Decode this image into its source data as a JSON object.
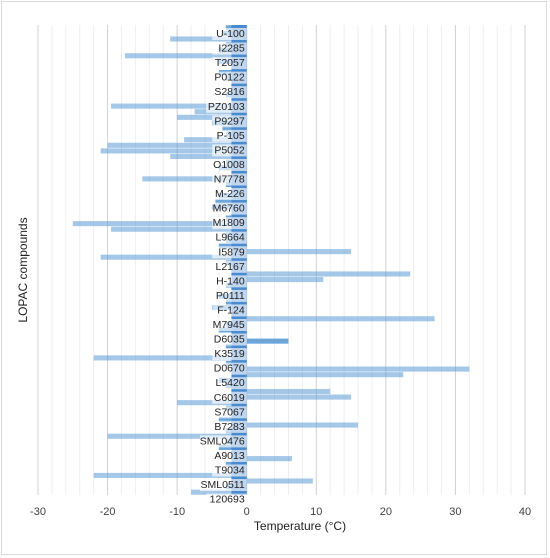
{
  "chart_data": {
    "type": "bar",
    "orientation": "horizontal",
    "xlabel": "Temperature (°C)",
    "ylabel": "LOPAC compounds",
    "xlim": [
      -30,
      40
    ],
    "xticks": [
      -30,
      -20,
      -10,
      0,
      10,
      20,
      30,
      40
    ],
    "grid": true,
    "labeled_categories": [
      "U-100",
      "I2285",
      "T2057",
      "P0122",
      "S2816",
      "PZ0103",
      "P9297",
      "P-105",
      "P5052",
      "O1008",
      "N7778",
      "M-226",
      "M6760",
      "M1809",
      "L9664",
      "I5879",
      "L2167",
      "H-140",
      "P0111",
      "F-124",
      "M7945",
      "D6035",
      "K3519",
      "D0670",
      "L5420",
      "C6019",
      "S7067",
      "B7283",
      "SML0476",
      "A9013",
      "T9034",
      "SML0511",
      "120693"
    ],
    "series": [
      {
        "values": [
          -3,
          -3.5,
          -11,
          -3,
          -4,
          -17.5,
          -4,
          -2,
          -4,
          -3,
          -1.5,
          -2,
          -3,
          -2,
          -19.5,
          -7.5,
          -10,
          -5,
          -3.5,
          -3,
          -9,
          -20,
          -21,
          -11,
          -3,
          -4,
          -2,
          -15,
          -3,
          -2,
          -4,
          -4.5,
          -5,
          -2,
          -3,
          -25,
          -19.5,
          -3,
          -3,
          -4,
          15,
          -21,
          -3,
          -2,
          23.5,
          11,
          -3,
          -2,
          -4,
          -3,
          -5,
          -2,
          27,
          -3,
          -4,
          -2,
          6,
          -3,
          -2,
          -22,
          -3,
          32,
          22.5,
          -4,
          -3,
          12,
          15,
          -10,
          -3,
          -2,
          -4,
          16,
          -3,
          -20,
          -3,
          -4,
          -2,
          6.5,
          -3,
          -2,
          -22,
          9.5,
          -3,
          -8
        ]
      }
    ]
  }
}
